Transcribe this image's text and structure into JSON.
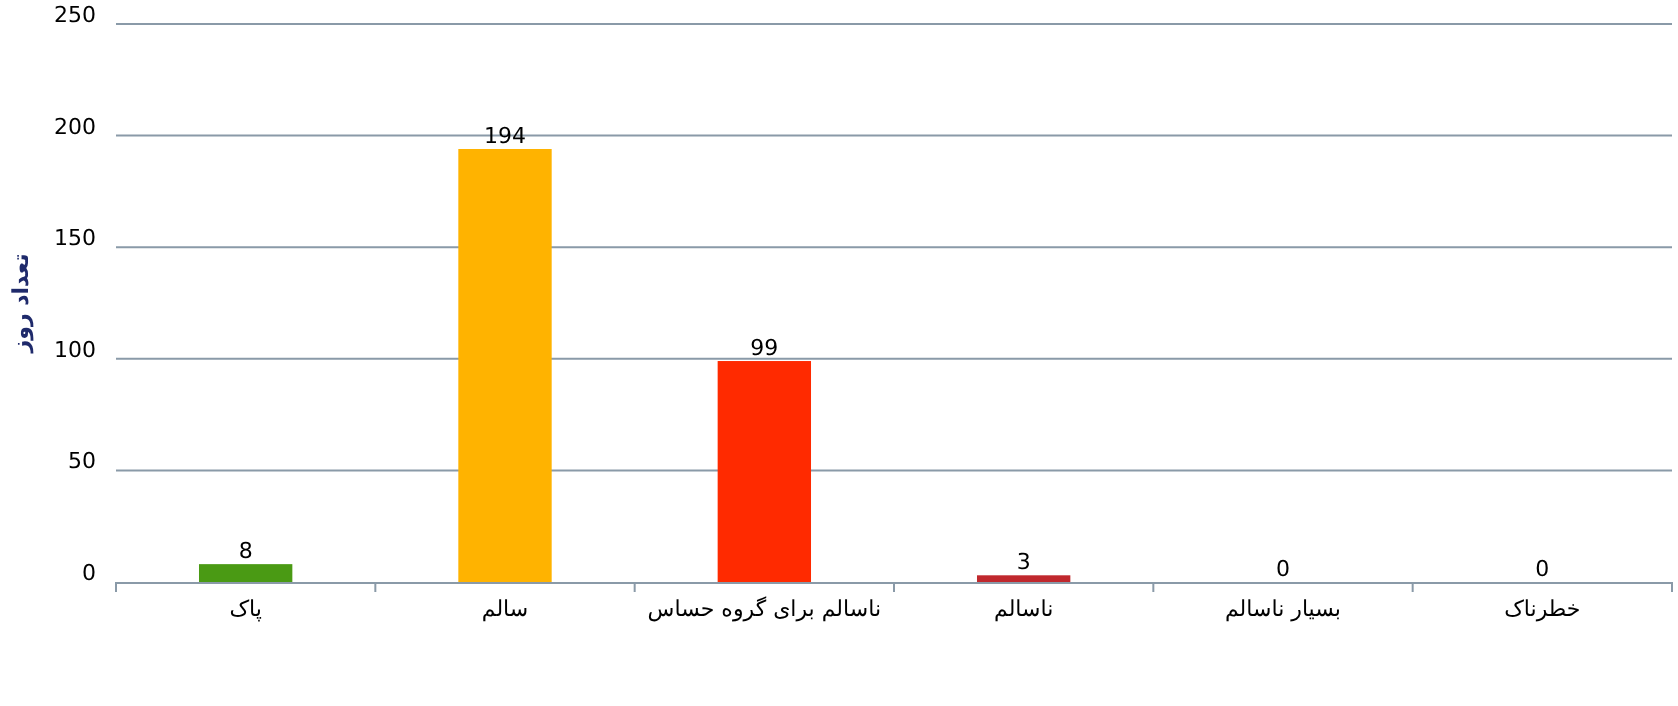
{
  "chart_data": {
    "type": "bar",
    "ylabel": "تعداد روز",
    "categories": [
      "پاک",
      "سالم",
      "ناسالم برای گروه حساس",
      "ناسالم",
      "بسیار ناسالم",
      "خطرناک"
    ],
    "values": [
      8,
      194,
      99,
      3,
      0,
      0
    ],
    "colors": [
      "#4a9a14",
      "#ffb300",
      "#ff2a00",
      "#c0282d",
      "#8f3f97",
      "#7e0023"
    ],
    "ylim": [
      0,
      250
    ],
    "yticks": [
      0,
      50,
      100,
      150,
      200,
      250
    ],
    "grid": "y",
    "data_labels": true
  }
}
